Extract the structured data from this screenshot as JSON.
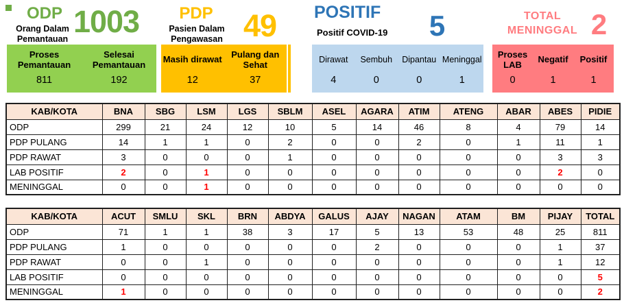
{
  "summary_cards": {
    "odp": {
      "title": "ODP",
      "subtitle": "Orang Dalam Pemantauan",
      "value": "1003",
      "accent_color": "#70AD47",
      "box_color": "#92D050",
      "stats": [
        {
          "label": "Proses Pemantauan",
          "value": "811"
        },
        {
          "label": "Selesai Pemantauan",
          "value": "192"
        }
      ]
    },
    "pdp": {
      "title": "PDP",
      "subtitle": "Pasien Dalam Pengawasan",
      "value": "49",
      "accent_color": "#FFC000",
      "box_color": "#FFC000",
      "stats": [
        {
          "label": "Masih dirawat",
          "value": "12"
        },
        {
          "label": "Pulang dan Sehat",
          "value": "37"
        }
      ]
    },
    "positif": {
      "title": "POSITIF",
      "subtitle": "Positif COVID-19",
      "value": "5",
      "accent_color": "#2E75B6",
      "box_color": "#BDD7EE",
      "stats": [
        {
          "label": "Dirawat",
          "value": "4"
        },
        {
          "label": "Sembuh",
          "value": "0"
        },
        {
          "label": "Dipantau",
          "value": "0"
        },
        {
          "label": "Meninggal",
          "value": "1"
        }
      ]
    },
    "total_meninggal": {
      "title": "TOTAL MENINGGAL",
      "value": "2",
      "accent_color": "#FF7C80",
      "box_color": "#FF7C80",
      "stats": [
        {
          "label": "Proses LAB",
          "value": "0"
        },
        {
          "label": "Negatif",
          "value": "1"
        },
        {
          "label": "Positif",
          "value": "1"
        }
      ]
    }
  },
  "tables": [
    {
      "columns": [
        "KAB/KOTA",
        "BNA",
        "SBG",
        "LSM",
        "LGS",
        "SBLM",
        "ASEL",
        "AGARA",
        "ATIM",
        "ATENG",
        "ABAR",
        "ABES",
        "PIDIE"
      ],
      "rows": [
        {
          "label": "ODP",
          "values": [
            "299",
            "21",
            "24",
            "12",
            "10",
            "5",
            "14",
            "46",
            "8",
            "4",
            "79",
            "14"
          ],
          "red": []
        },
        {
          "label": "PDP PULANG",
          "values": [
            "14",
            "1",
            "1",
            "0",
            "2",
            "0",
            "0",
            "2",
            "0",
            "1",
            "11",
            "1"
          ],
          "red": []
        },
        {
          "label": "PDP RAWAT",
          "values": [
            "3",
            "0",
            "0",
            "0",
            "1",
            "0",
            "0",
            "0",
            "0",
            "0",
            "3",
            "3"
          ],
          "red": []
        },
        {
          "label": "LAB POSITIF",
          "values": [
            "2",
            "0",
            "1",
            "0",
            "0",
            "0",
            "0",
            "0",
            "0",
            "0",
            "2",
            "0"
          ],
          "red": [
            0,
            2,
            10
          ]
        },
        {
          "label": "MENINGGAL",
          "values": [
            "0",
            "0",
            "1",
            "0",
            "0",
            "0",
            "0",
            "0",
            "0",
            "0",
            "0",
            "0"
          ],
          "red": [
            2
          ]
        }
      ]
    },
    {
      "columns": [
        "KAB/KOTA",
        "ACUT",
        "SMLU",
        "SKL",
        "BRN",
        "ABDYA",
        "GALUS",
        "AJAY",
        "NAGAN",
        "ATAM",
        "BM",
        "PIJAY",
        "TOTAL"
      ],
      "rows": [
        {
          "label": "ODP",
          "values": [
            "71",
            "1",
            "1",
            "38",
            "3",
            "17",
            "5",
            "13",
            "53",
            "48",
            "25",
            "811"
          ],
          "red": []
        },
        {
          "label": "PDP PULANG",
          "values": [
            "1",
            "0",
            "0",
            "0",
            "0",
            "0",
            "2",
            "0",
            "0",
            "0",
            "1",
            "37"
          ],
          "red": []
        },
        {
          "label": "PDP RAWAT",
          "values": [
            "0",
            "0",
            "1",
            "0",
            "0",
            "0",
            "0",
            "0",
            "0",
            "0",
            "1",
            "12"
          ],
          "red": []
        },
        {
          "label": "LAB POSITIF",
          "values": [
            "0",
            "0",
            "0",
            "0",
            "0",
            "0",
            "0",
            "0",
            "0",
            "0",
            "0",
            "5"
          ],
          "red": [
            11
          ]
        },
        {
          "label": "MENINGGAL",
          "values": [
            "1",
            "0",
            "0",
            "0",
            "0",
            "0",
            "0",
            "0",
            "0",
            "0",
            "0",
            "2"
          ],
          "red": [
            0,
            11
          ]
        }
      ]
    }
  ],
  "colors": {
    "table_header_bg": "#FBE5D6",
    "highlight_red": "#FF0000",
    "table_border": "#1F1F1F"
  }
}
